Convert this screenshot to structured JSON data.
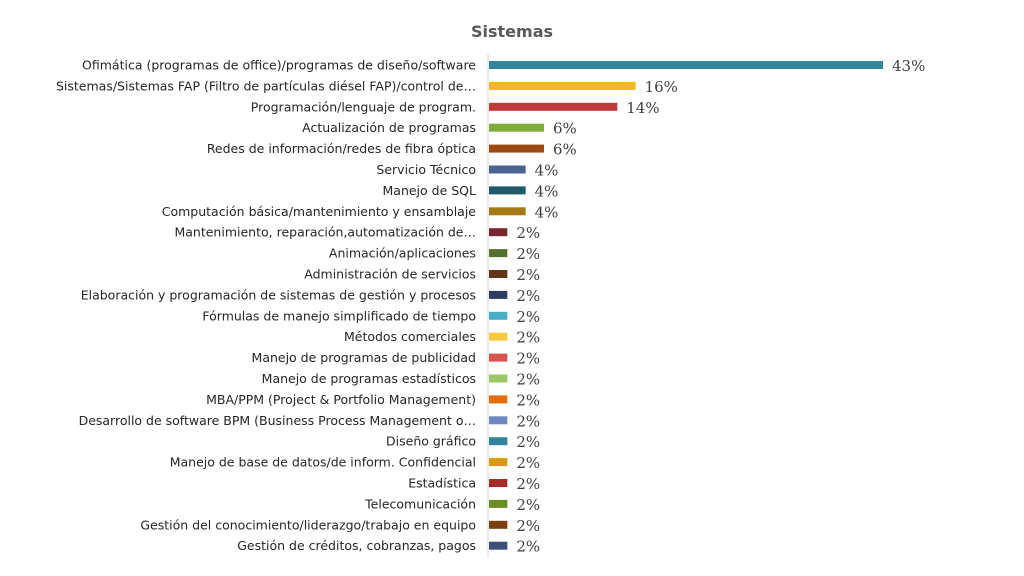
{
  "chart_data": {
    "type": "bar",
    "orientation": "horizontal",
    "title": "Sistemas",
    "xlabel": "",
    "ylabel": "",
    "grid": false,
    "legend": "none",
    "value_suffix": "%",
    "categories": [
      "Ofimática (programas de office)/programas de diseño/software",
      "Sistemas/Sistemas FAP (Filtro de partículas diésel FAP)/control de…",
      "Programación/lenguaje de program.",
      "Actualización de programas",
      "Redes de información/redes de fibra óptica",
      "Servicio Técnico",
      "Manejo de SQL",
      "Computación básica/mantenimiento y ensamblaje",
      "Mantenimiento, reparación,automatización de…",
      "Animación/aplicaciones",
      "Administración de servicios",
      "Elaboración y programación de sistemas de gestión y procesos",
      "Fórmulas de manejo simplificado de tiempo",
      "Métodos comerciales",
      "Manejo de programas de publicidad",
      "Manejo de programas estadísticos",
      "MBA/PPM (Project & Portfolio Management)",
      "Desarrollo de software BPM (Business Process Management o…",
      "Diseño gráfico",
      "Manejo de base de datos/de inform. Confidencial",
      "Estadística",
      "Telecomunicación",
      "Gestión del conocimiento/liderazgo/trabajo en equipo",
      "Gestión de créditos, cobranzas, pagos"
    ],
    "values": [
      43,
      16,
      14,
      6,
      6,
      4,
      4,
      4,
      2,
      2,
      2,
      2,
      2,
      2,
      2,
      2,
      2,
      2,
      2,
      2,
      2,
      2,
      2,
      2
    ],
    "colors": [
      "#31859C",
      "#F2B81D",
      "#C0393B",
      "#7FAB3C",
      "#9C4A10",
      "#4A6391",
      "#21596A",
      "#A47A17",
      "#7A2430",
      "#56712D",
      "#633417",
      "#2E3D60",
      "#4BACC6",
      "#F9C844",
      "#D9534F",
      "#9BC765",
      "#E46C0A",
      "#6F87C0",
      "#31859C",
      "#D99A0E",
      "#A52A2A",
      "#6B8E23",
      "#7B3F10",
      "#3B4F7A"
    ],
    "xlim": [
      0,
      45
    ]
  }
}
